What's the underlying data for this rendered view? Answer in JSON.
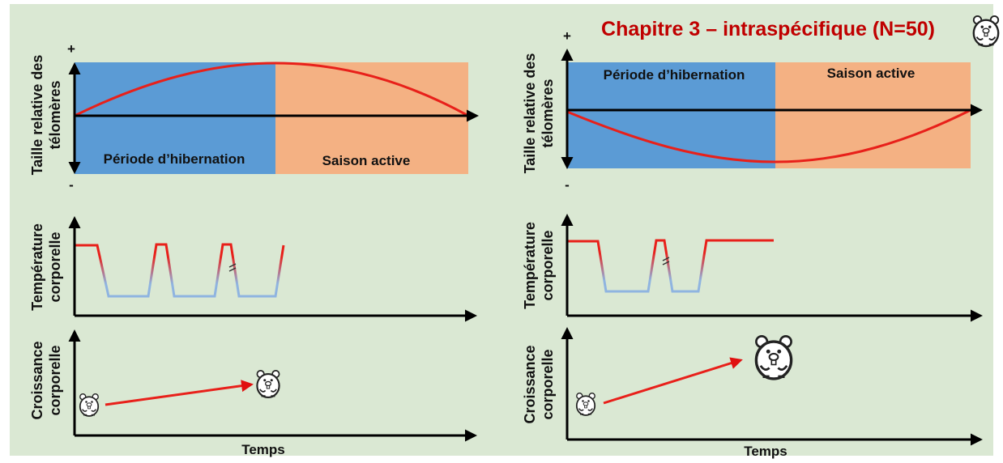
{
  "title": "Chapitre 3 – intraspécifique (N=50)",
  "panels": [
    {
      "telomere_label": [
        "Taille relative des",
        "télomères"
      ],
      "plus": "+",
      "minus": "-",
      "hibernation": "Période d’hibernation",
      "active": "Saison active",
      "temperature_label": [
        "Température",
        "corporelle"
      ],
      "growth_label": [
        "Croissance",
        "corporelle"
      ],
      "time_label": "Temps"
    },
    {
      "telomere_label": [
        "Taille relative des",
        "télomères"
      ],
      "plus": "+",
      "minus": "-",
      "hibernation": "Période d’hibernation",
      "active": "Saison active",
      "temperature_label": [
        "Température",
        "corporelle"
      ],
      "growth_label": [
        "Croissance",
        "corporelle"
      ],
      "time_label": "Temps"
    }
  ]
}
